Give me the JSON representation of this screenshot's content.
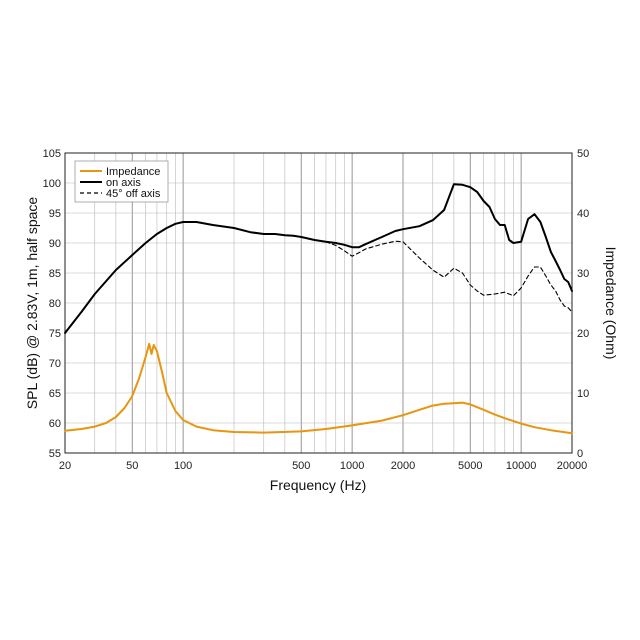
{
  "chart_data": {
    "type": "line",
    "x_scale": "log",
    "xlabel": "Frequency (Hz)",
    "ylabel": "SPL (dB) @ 2.83V, 1m, half space",
    "y2label": "Impedance (Ohm)",
    "xlim": [
      20,
      20000
    ],
    "ylim": [
      55,
      105
    ],
    "y2lim": [
      0,
      50
    ],
    "x_tick_labels": [
      "20",
      "50",
      "100",
      "500",
      "1000",
      "2000",
      "5000",
      "10000",
      "20000"
    ],
    "x_tick_values": [
      20,
      50,
      100,
      500,
      1000,
      2000,
      5000,
      10000,
      20000
    ],
    "y_ticks": [
      55,
      60,
      65,
      70,
      75,
      80,
      85,
      90,
      95,
      100,
      105
    ],
    "y2_ticks": [
      0,
      10,
      20,
      30,
      40,
      50
    ],
    "grid": true,
    "legend_position": "top-left",
    "legend": [
      "Impedance",
      "on axis",
      "45° off axis"
    ],
    "series": [
      {
        "name": "Impedance",
        "axis": "right",
        "color": "#E8950F",
        "style": "solid",
        "x": [
          20,
          25,
          30,
          35,
          40,
          45,
          50,
          55,
          60,
          63,
          65,
          67,
          70,
          75,
          80,
          90,
          100,
          120,
          150,
          200,
          300,
          500,
          700,
          1000,
          1500,
          2000,
          2500,
          3000,
          3500,
          4000,
          4500,
          5000,
          6000,
          7000,
          8000,
          10000,
          12000,
          15000,
          20000
        ],
        "y": [
          3.7,
          4.0,
          4.4,
          5.0,
          6.0,
          7.5,
          9.5,
          12.5,
          16.0,
          18.2,
          16.5,
          18.0,
          17.0,
          13.5,
          10.0,
          7.0,
          5.5,
          4.4,
          3.8,
          3.5,
          3.4,
          3.6,
          4.0,
          4.6,
          5.4,
          6.3,
          7.2,
          7.9,
          8.2,
          8.3,
          8.4,
          8.1,
          7.2,
          6.4,
          5.8,
          4.9,
          4.3,
          3.8,
          3.3
        ]
      },
      {
        "name": "on axis",
        "axis": "left",
        "color": "#000000",
        "style": "solid",
        "x": [
          20,
          25,
          30,
          40,
          50,
          60,
          70,
          80,
          90,
          100,
          120,
          150,
          200,
          250,
          300,
          350,
          400,
          450,
          500,
          600,
          700,
          800,
          900,
          1000,
          1100,
          1200,
          1500,
          1800,
          2000,
          2500,
          3000,
          3500,
          4000,
          4500,
          5000,
          5500,
          6000,
          6500,
          7000,
          7500,
          8000,
          8500,
          9000,
          10000,
          11000,
          12000,
          13000,
          14000,
          15000,
          16000,
          17000,
          18000,
          19000,
          20000
        ],
        "y": [
          75,
          78.5,
          81.5,
          85.5,
          88,
          90,
          91.5,
          92.5,
          93.2,
          93.5,
          93.5,
          93.0,
          92.5,
          91.8,
          91.5,
          91.5,
          91.3,
          91.2,
          91.0,
          90.5,
          90.2,
          90.0,
          89.7,
          89.3,
          89.3,
          89.8,
          91.0,
          92.0,
          92.3,
          92.8,
          93.8,
          95.5,
          99.8,
          99.7,
          99.3,
          98.5,
          97.0,
          96.0,
          94.0,
          93.0,
          93.0,
          90.5,
          90.0,
          90.2,
          94.0,
          94.8,
          93.5,
          91.0,
          88.5,
          87.0,
          85.5,
          84.0,
          83.5,
          82.0
        ]
      },
      {
        "name": "45° off axis",
        "axis": "left",
        "color": "#000000",
        "style": "dashed",
        "x": [
          700,
          800,
          900,
          1000,
          1100,
          1200,
          1500,
          1800,
          2000,
          2500,
          3000,
          3500,
          4000,
          4500,
          5000,
          5500,
          6000,
          7000,
          8000,
          9000,
          10000,
          11000,
          12000,
          13000,
          14000,
          15000,
          16000,
          17000,
          18000,
          19000,
          20000
        ],
        "y": [
          90.2,
          89.6,
          88.7,
          87.8,
          88.4,
          89.0,
          89.8,
          90.3,
          90.2,
          87.5,
          85.5,
          84.3,
          85.8,
          85.0,
          83.0,
          82.0,
          81.3,
          81.5,
          81.8,
          81.2,
          82.5,
          84.5,
          86.0,
          86.0,
          84.5,
          83.0,
          82.0,
          80.5,
          79.5,
          79.2,
          78.5
        ]
      }
    ]
  }
}
